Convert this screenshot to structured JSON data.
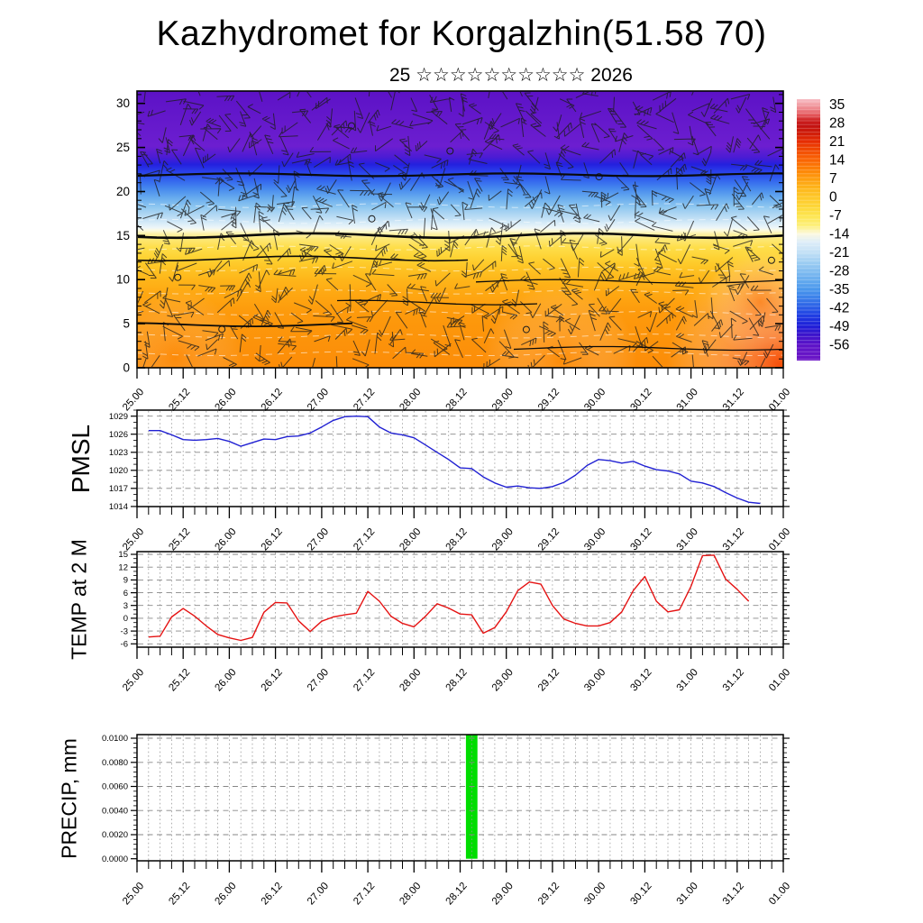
{
  "title": "Kazhydromet for Korgalzhin(51.58 70)",
  "subtitle": "25 ☆☆☆☆☆☆☆☆☆☆ 2026",
  "time_axis": {
    "total_hours": 168,
    "minor_step_hours": 3,
    "major_step_hours": 12,
    "major_labels": [
      "25.00",
      "25.12",
      "26.00",
      "26.12",
      "27.00",
      "27.12",
      "28.00",
      "28.12",
      "29.00",
      "29.12",
      "30.00",
      "30.12",
      "31.00",
      "31.12",
      "01.00"
    ]
  },
  "colorbar": {
    "vmax": 37,
    "vmin": -62,
    "tick_values": [
      35,
      28,
      21,
      14,
      7,
      0,
      -7,
      -14,
      -21,
      -28,
      -35,
      -42,
      -49,
      -56
    ],
    "tick_labels": [
      "35",
      "28",
      "21",
      "14",
      "7",
      "0",
      "-7",
      "-14",
      "-21",
      "-28",
      "-35",
      "-42",
      "-49",
      "-56"
    ],
    "stops": [
      [
        37,
        "#f7bdc4"
      ],
      [
        34,
        "#ef9096"
      ],
      [
        31,
        "#e4585c"
      ],
      [
        29,
        "#cd2020"
      ],
      [
        27,
        "#c21212"
      ],
      [
        24,
        "#d01c08"
      ],
      [
        21,
        "#e62c02"
      ],
      [
        18,
        "#f04802"
      ],
      [
        14,
        "#fa6404"
      ],
      [
        10,
        "#fd8506"
      ],
      [
        7,
        "#fe9c0e"
      ],
      [
        3,
        "#feb81c"
      ],
      [
        0,
        "#fec728"
      ],
      [
        -4,
        "#fdd83a"
      ],
      [
        -7,
        "#fde44e"
      ],
      [
        -11,
        "#fdf07c"
      ],
      [
        -14,
        "#fcf9e0"
      ],
      [
        -17,
        "#dfeef8"
      ],
      [
        -21,
        "#c2e0f6"
      ],
      [
        -25,
        "#9ccdf2"
      ],
      [
        -28,
        "#82bdf0"
      ],
      [
        -32,
        "#62a9ee"
      ],
      [
        -35,
        "#4a97ec"
      ],
      [
        -38,
        "#3c81ea"
      ],
      [
        -42,
        "#2a5ce6"
      ],
      [
        -45,
        "#1e3ce2"
      ],
      [
        -49,
        "#1e1ed8"
      ],
      [
        -52,
        "#3a14cc"
      ],
      [
        -56,
        "#5c12c8"
      ],
      [
        -62,
        "#6c16c6"
      ]
    ]
  },
  "chart_data": [
    {
      "type": "heatmap",
      "name": "wind-temp-cross-section",
      "ylabel": "",
      "ylim": [
        0,
        31.4
      ],
      "y_ticks": [
        0,
        5,
        10,
        15,
        20,
        25,
        30
      ],
      "y_tick_labels": [
        "0",
        "5",
        "10",
        "15",
        "20",
        "25",
        "30"
      ],
      "profile_height_km": [
        0,
        2,
        5,
        8,
        10,
        12,
        14,
        15,
        16,
        17,
        18,
        19,
        20,
        21,
        22,
        23,
        26,
        30
      ],
      "profile_temp_c": [
        5,
        6,
        3,
        -2,
        -5,
        -8,
        -11,
        -14,
        -17,
        -21,
        -25,
        -29,
        -34,
        -40,
        -48,
        -54,
        -56,
        -55
      ],
      "gradient_stops": [
        [
          0.0,
          "#5c12c6"
        ],
        [
          0.2,
          "#6c1ed0"
        ],
        [
          0.24,
          "#4a1cd4"
        ],
        [
          0.265,
          "#2420de"
        ],
        [
          0.285,
          "#2838e8"
        ],
        [
          0.315,
          "#2f5cee"
        ],
        [
          0.35,
          "#4486ee"
        ],
        [
          0.385,
          "#66aaee"
        ],
        [
          0.42,
          "#90c8f0"
        ],
        [
          0.455,
          "#badcf4"
        ],
        [
          0.478,
          "#d8ecf8"
        ],
        [
          0.495,
          "#eef6f8"
        ],
        [
          0.503,
          "#fdfbe0"
        ],
        [
          0.515,
          "#fdf2ac"
        ],
        [
          0.535,
          "#fde876"
        ],
        [
          0.565,
          "#fede4a"
        ],
        [
          0.6,
          "#fed334"
        ],
        [
          0.64,
          "#fec424"
        ],
        [
          0.68,
          "#feb61a"
        ],
        [
          0.73,
          "#fea812"
        ],
        [
          0.8,
          "#fd9a0c"
        ],
        [
          1.0,
          "#fc8c08"
        ]
      ],
      "hotspots": [
        {
          "h": 167,
          "km": 0.3,
          "r": 125,
          "color": "rgba(245,68,10,0.85)"
        },
        {
          "h": 162,
          "km": 7.5,
          "r": 60,
          "color": "rgba(250,100,10,0.45)"
        },
        {
          "h": 110,
          "km": 0.8,
          "r": 85,
          "color": "rgba(253,138,8,0.5)"
        },
        {
          "h": 10,
          "km": 1.2,
          "r": 75,
          "color": "rgba(253,132,8,0.4)"
        }
      ],
      "black_contours": [
        {
          "km": 15.0,
          "h0": 0,
          "h1": 168,
          "w": 2.6,
          "amp": 2.5
        },
        {
          "km": 21.9,
          "h0": 0,
          "h1": 168,
          "w": 2.2,
          "amp": 1.5
        },
        {
          "km": 12.4,
          "h0": 0,
          "h1": 86,
          "w": 1.6,
          "amp": 2.5
        },
        {
          "km": 9.8,
          "h0": 88,
          "h1": 168,
          "w": 1.3,
          "amp": 2.0
        },
        {
          "km": 4.9,
          "h0": 0,
          "h1": 56,
          "w": 1.8,
          "amp": 2.0
        },
        {
          "km": 2.2,
          "h0": 98,
          "h1": 168,
          "w": 1.3,
          "amp": 2.0
        },
        {
          "km": 7.4,
          "h0": 52,
          "h1": 104,
          "w": 1.3,
          "amp": 2.5
        }
      ],
      "white_contours_km": [
        18.4,
        16.6,
        13.6,
        11.2,
        8.6,
        6.2,
        3.6,
        1.6
      ]
    },
    {
      "type": "line",
      "name": "pmsl",
      "ylabel": "PMSL",
      "line_color": "#2121d3",
      "ylim": [
        1013.98,
        1030.0
      ],
      "y_ticks": [
        1014,
        1017,
        1020,
        1023,
        1026,
        1029
      ],
      "y_tick_labels": [
        "1014",
        "1017",
        "1020",
        "1023",
        "1026",
        "1029"
      ],
      "y_minor_step": 1,
      "hours": [
        3,
        6,
        9,
        12,
        15,
        18,
        21,
        24,
        27,
        30,
        33,
        36,
        39,
        42,
        45,
        48,
        51,
        54,
        57,
        60,
        63,
        66,
        69,
        72,
        75,
        78,
        81,
        84,
        87,
        90,
        93,
        96,
        99,
        102,
        105,
        108,
        111,
        114,
        117,
        120,
        123,
        126,
        129,
        132,
        135,
        138,
        141,
        144,
        147,
        150,
        153,
        156,
        159,
        162
      ],
      "values": [
        1026.6,
        1026.6,
        1025.9,
        1025.1,
        1025.0,
        1025.1,
        1025.3,
        1024.8,
        1024.0,
        1024.6,
        1025.2,
        1025.1,
        1025.6,
        1025.7,
        1026.2,
        1027.2,
        1028.3,
        1028.9,
        1029.0,
        1028.9,
        1027.2,
        1026.2,
        1025.9,
        1025.4,
        1024.2,
        1023.0,
        1021.8,
        1020.4,
        1020.3,
        1018.9,
        1017.9,
        1017.2,
        1017.4,
        1017.1,
        1017.0,
        1017.3,
        1018.0,
        1019.2,
        1020.8,
        1021.8,
        1021.6,
        1021.2,
        1021.5,
        1020.7,
        1020.1,
        1019.9,
        1019.4,
        1018.2,
        1017.9,
        1017.3,
        1016.3,
        1015.4,
        1014.7,
        1014.5
      ]
    },
    {
      "type": "line",
      "name": "temp2m",
      "ylabel": "TEMP at 2 M",
      "line_color": "#e51212",
      "ylim": [
        -6.78,
        15.63
      ],
      "y_ticks": [
        -6,
        -3,
        0,
        3,
        6,
        9,
        12,
        15
      ],
      "y_tick_labels": [
        "-6",
        "-3",
        "0",
        "3",
        "6",
        "9",
        "12",
        "15"
      ],
      "y_minor_step": 1,
      "hours": [
        3,
        6,
        9,
        12,
        15,
        18,
        21,
        24,
        27,
        30,
        33,
        36,
        39,
        42,
        45,
        48,
        51,
        54,
        57,
        60,
        63,
        66,
        69,
        72,
        75,
        78,
        81,
        84,
        87,
        90,
        93,
        96,
        99,
        102,
        105,
        108,
        111,
        114,
        117,
        120,
        123,
        126,
        129,
        132,
        135,
        138,
        141,
        144,
        147,
        150,
        153,
        156,
        159
      ],
      "values": [
        -4.4,
        -4.2,
        0.3,
        2.3,
        0.5,
        -1.8,
        -3.8,
        -4.6,
        -5.2,
        -4.5,
        1.4,
        3.7,
        3.6,
        -0.6,
        -3.1,
        -0.7,
        0.3,
        0.8,
        1.2,
        6.3,
        4.0,
        0.5,
        -1.2,
        -2.0,
        0.5,
        3.4,
        2.4,
        1.0,
        0.8,
        -3.5,
        -2.2,
        1.5,
        6.5,
        8.5,
        8.0,
        3.0,
        -0.2,
        -1.2,
        -1.8,
        -1.8,
        -1.0,
        1.5,
        6.5,
        9.8,
        4.0,
        1.5,
        2.0,
        7.5,
        14.7,
        14.8,
        9.2,
        6.8,
        4.0
      ]
    },
    {
      "type": "bar",
      "name": "precip",
      "ylabel": "PRECIP, mm",
      "bar_color": "#00dd00",
      "ylim": [
        -0.00017,
        0.0103
      ],
      "y_ticks": [
        0,
        0.002,
        0.004,
        0.006,
        0.008,
        0.01
      ],
      "y_tick_labels": [
        "0.0000",
        "0.0020",
        "0.0040",
        "0.0060",
        "0.0080",
        "0.0100"
      ],
      "y_minor_step": 0.0004,
      "bars": [
        {
          "start_hour": 85.5,
          "end_hour": 88.5,
          "value": 0.0103
        }
      ]
    }
  ]
}
